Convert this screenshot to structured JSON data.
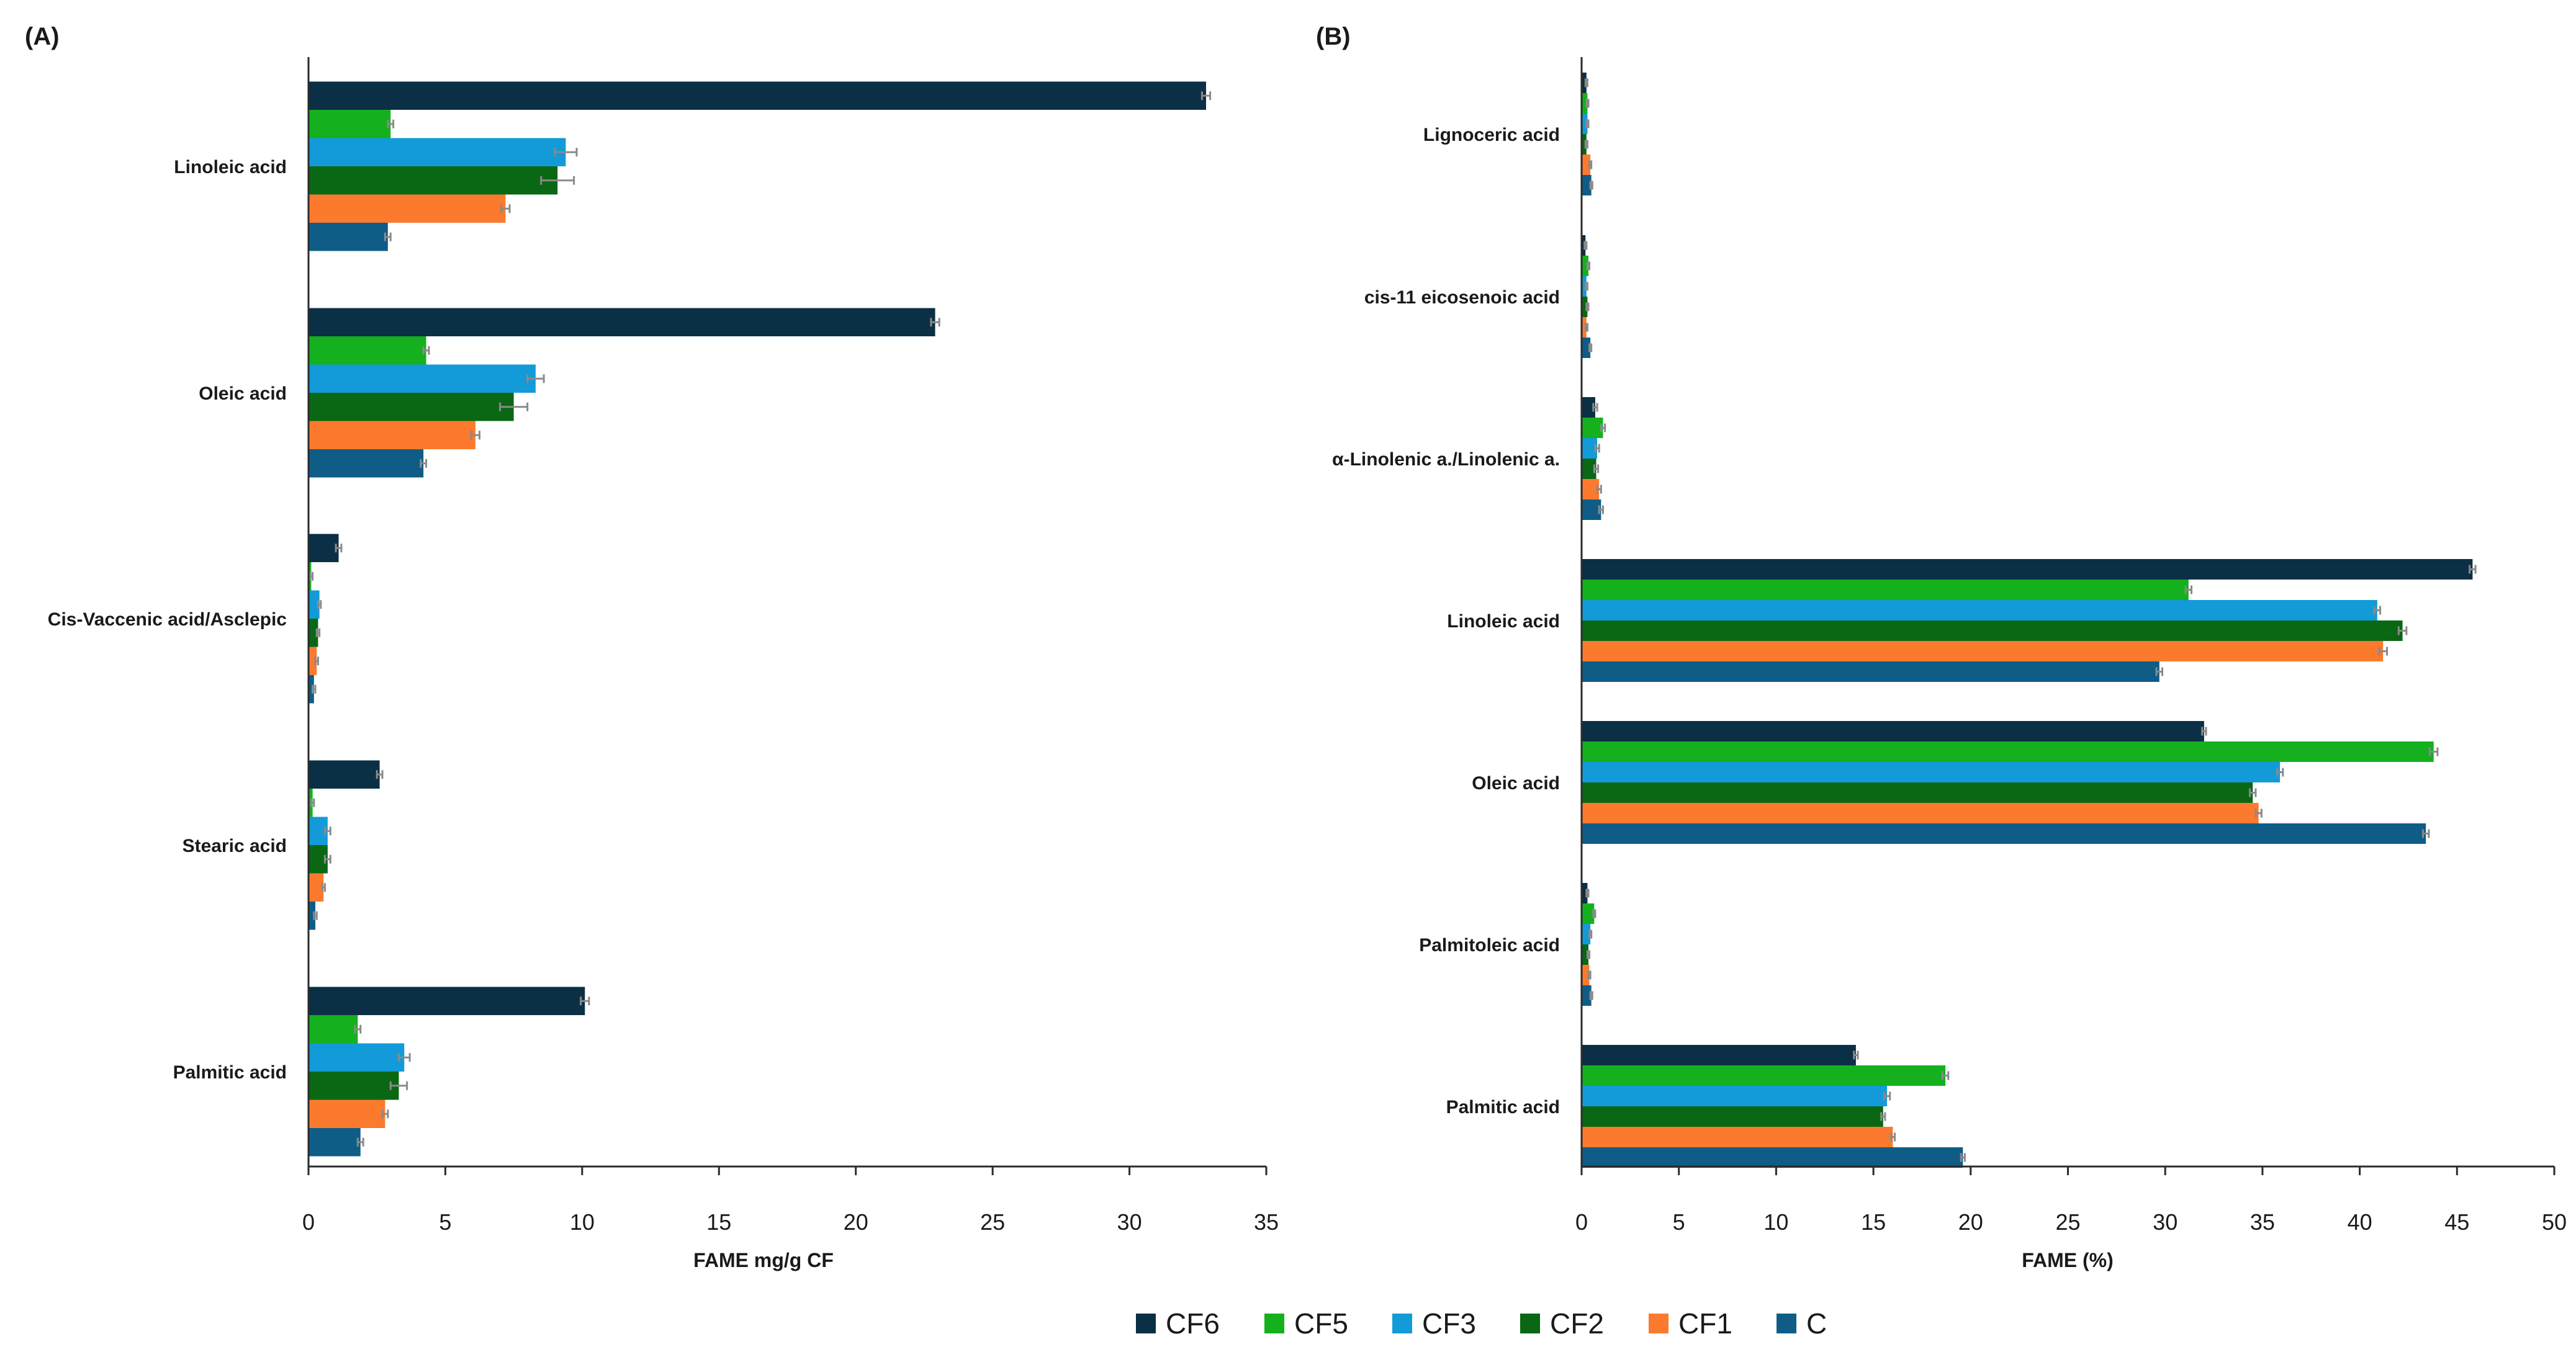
{
  "legend": [
    {
      "name": "CF6",
      "color": "#0b2f45"
    },
    {
      "name": "CF5",
      "color": "#14b01e"
    },
    {
      "name": "CF3",
      "color": "#129bd8"
    },
    {
      "name": "CF2",
      "color": "#0a6714"
    },
    {
      "name": "CF1",
      "color": "#fb7a2e"
    },
    {
      "name": "C",
      "color": "#0f5d87"
    }
  ],
  "chart_data": [
    {
      "panel": "(A)",
      "type": "bar",
      "orientation": "horizontal",
      "xlabel": "FAME mg/g CF",
      "xlim": [
        0,
        35
      ],
      "xticks": [
        0,
        5,
        10,
        15,
        20,
        25,
        30,
        35
      ],
      "categories": [
        "Linoleic acid",
        "Oleic acid",
        "Cis-Vaccenic acid/Asclepic",
        "Stearic acid",
        "Palmitic acid"
      ],
      "series": [
        {
          "name": "CF6",
          "values": [
            32.8,
            22.9,
            1.1,
            2.6,
            10.1
          ],
          "errors": [
            0.15,
            0.15,
            0.1,
            0.1,
            0.15
          ]
        },
        {
          "name": "CF5",
          "values": [
            3.0,
            4.3,
            0.1,
            0.15,
            1.8
          ],
          "errors": [
            0.1,
            0.1,
            0.05,
            0.05,
            0.1
          ]
        },
        {
          "name": "CF3",
          "values": [
            9.4,
            8.3,
            0.4,
            0.7,
            3.5
          ],
          "errors": [
            0.4,
            0.3,
            0.05,
            0.1,
            0.2
          ]
        },
        {
          "name": "CF2",
          "values": [
            9.1,
            7.5,
            0.35,
            0.7,
            3.3
          ],
          "errors": [
            0.6,
            0.5,
            0.05,
            0.1,
            0.3
          ]
        },
        {
          "name": "CF1",
          "values": [
            7.2,
            6.1,
            0.3,
            0.55,
            2.8
          ],
          "errors": [
            0.15,
            0.15,
            0.05,
            0.05,
            0.1
          ]
        },
        {
          "name": "C",
          "values": [
            2.9,
            4.2,
            0.2,
            0.25,
            1.9
          ],
          "errors": [
            0.1,
            0.1,
            0.05,
            0.05,
            0.1
          ]
        }
      ]
    },
    {
      "panel": "(B)",
      "type": "bar",
      "orientation": "horizontal",
      "xlabel": "FAME (%)",
      "xlim": [
        0,
        50
      ],
      "xticks": [
        0,
        5,
        10,
        15,
        20,
        25,
        30,
        35,
        40,
        45,
        50
      ],
      "categories": [
        "Lignoceric acid",
        "cis-11 eicosenoic acid",
        "α-Linolenic a./Linolenic a.",
        "Linoleic acid",
        "Oleic acid",
        "Palmitoleic acid",
        "Palmitic acid"
      ],
      "series": [
        {
          "name": "CF6",
          "values": [
            0.25,
            0.2,
            0.7,
            45.8,
            32.0,
            0.3,
            14.1
          ],
          "errors": [
            0.05,
            0.05,
            0.1,
            0.15,
            0.1,
            0.05,
            0.1
          ]
        },
        {
          "name": "CF5",
          "values": [
            0.3,
            0.35,
            1.1,
            31.2,
            43.8,
            0.65,
            18.7
          ],
          "errors": [
            0.05,
            0.05,
            0.1,
            0.15,
            0.2,
            0.05,
            0.15
          ]
        },
        {
          "name": "CF3",
          "values": [
            0.3,
            0.25,
            0.8,
            40.9,
            35.9,
            0.45,
            15.7
          ],
          "errors": [
            0.05,
            0.05,
            0.1,
            0.15,
            0.15,
            0.05,
            0.15
          ]
        },
        {
          "name": "CF2",
          "values": [
            0.25,
            0.3,
            0.75,
            42.2,
            34.5,
            0.35,
            15.5
          ],
          "errors": [
            0.05,
            0.05,
            0.1,
            0.2,
            0.15,
            0.05,
            0.1
          ]
        },
        {
          "name": "CF1",
          "values": [
            0.45,
            0.25,
            0.9,
            41.2,
            34.8,
            0.4,
            16.0
          ],
          "errors": [
            0.05,
            0.05,
            0.1,
            0.2,
            0.15,
            0.05,
            0.1
          ]
        },
        {
          "name": "C",
          "values": [
            0.5,
            0.45,
            1.0,
            29.7,
            43.4,
            0.5,
            19.6
          ],
          "errors": [
            0.05,
            0.05,
            0.1,
            0.15,
            0.15,
            0.05,
            0.1
          ]
        }
      ]
    }
  ]
}
